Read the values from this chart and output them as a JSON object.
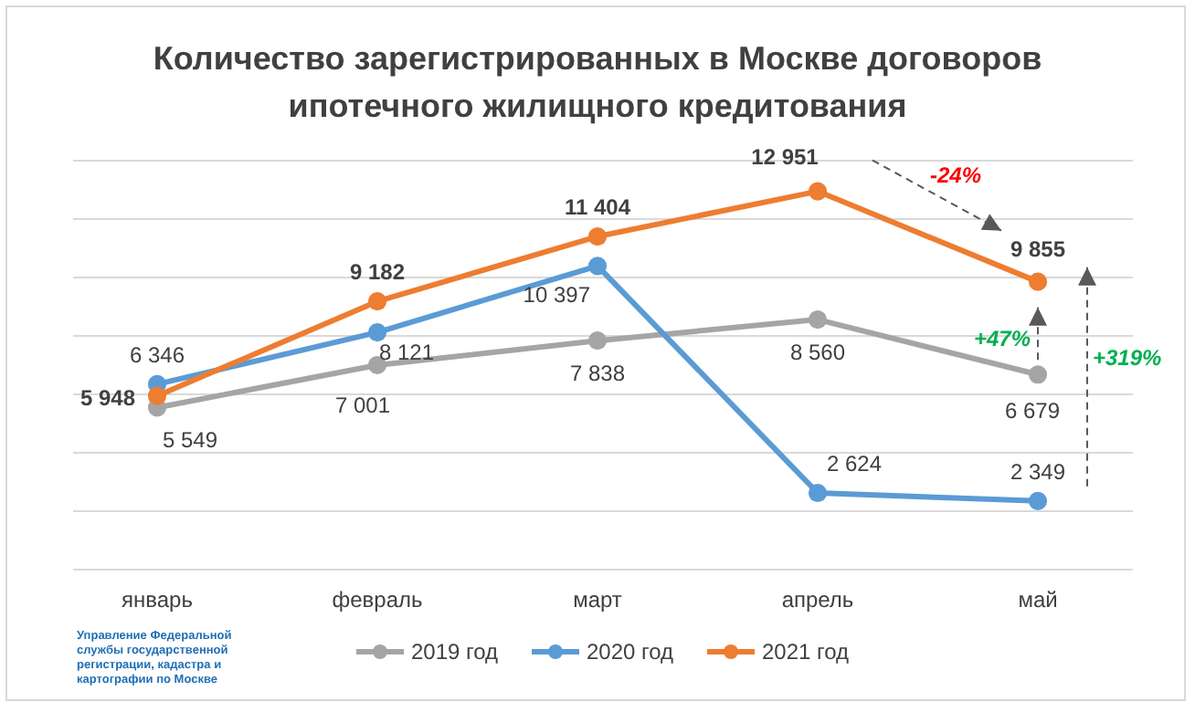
{
  "chart_data": {
    "type": "line",
    "title": "Количество зарегистрированных в Москве договоров ипотечного жилищного кредитования",
    "categories": [
      "январь",
      "февраль",
      "март",
      "апрель",
      "май"
    ],
    "series": [
      {
        "name": "2019 год",
        "color": "#a5a5a5",
        "values": [
          5549,
          7001,
          7838,
          8560,
          6679
        ],
        "value_labels": [
          "5 549",
          "7 001",
          "7 838",
          "8 560",
          "6 679"
        ]
      },
      {
        "name": "2020 год",
        "color": "#5b9bd5",
        "values": [
          6346,
          8121,
          10397,
          2624,
          2349
        ],
        "value_labels": [
          "6 346",
          "8 121",
          "10 397",
          "2 624",
          "2 349"
        ]
      },
      {
        "name": "2021 год",
        "color": "#ed7d31",
        "values": [
          5948,
          9182,
          11404,
          12951,
          9855
        ],
        "value_labels": [
          "5 948",
          "9 182",
          "11 404",
          "12 951",
          "9 855"
        ]
      }
    ],
    "ylim": [
      0,
      14000
    ],
    "yticks": [
      {
        "value": 0,
        "label": null
      },
      {
        "value": 2000,
        "label": null
      },
      {
        "value": 4000,
        "label": null
      },
      {
        "value": 6000,
        "label": null
      },
      {
        "value": 8000,
        "label": null
      },
      {
        "value": 10000,
        "label": null
      },
      {
        "value": 12000,
        "label": null
      },
      {
        "value": 14000,
        "label": null
      }
    ],
    "tick_labels": "x",
    "grid": "y",
    "legend": "bottom",
    "marker": "circle",
    "line_style": "solid",
    "annotations": [
      "-24%",
      "+47%",
      "+319%",
      "Управление Федеральной службы государственной регистрации, кадастра и картографии по Москве"
    ]
  }
}
